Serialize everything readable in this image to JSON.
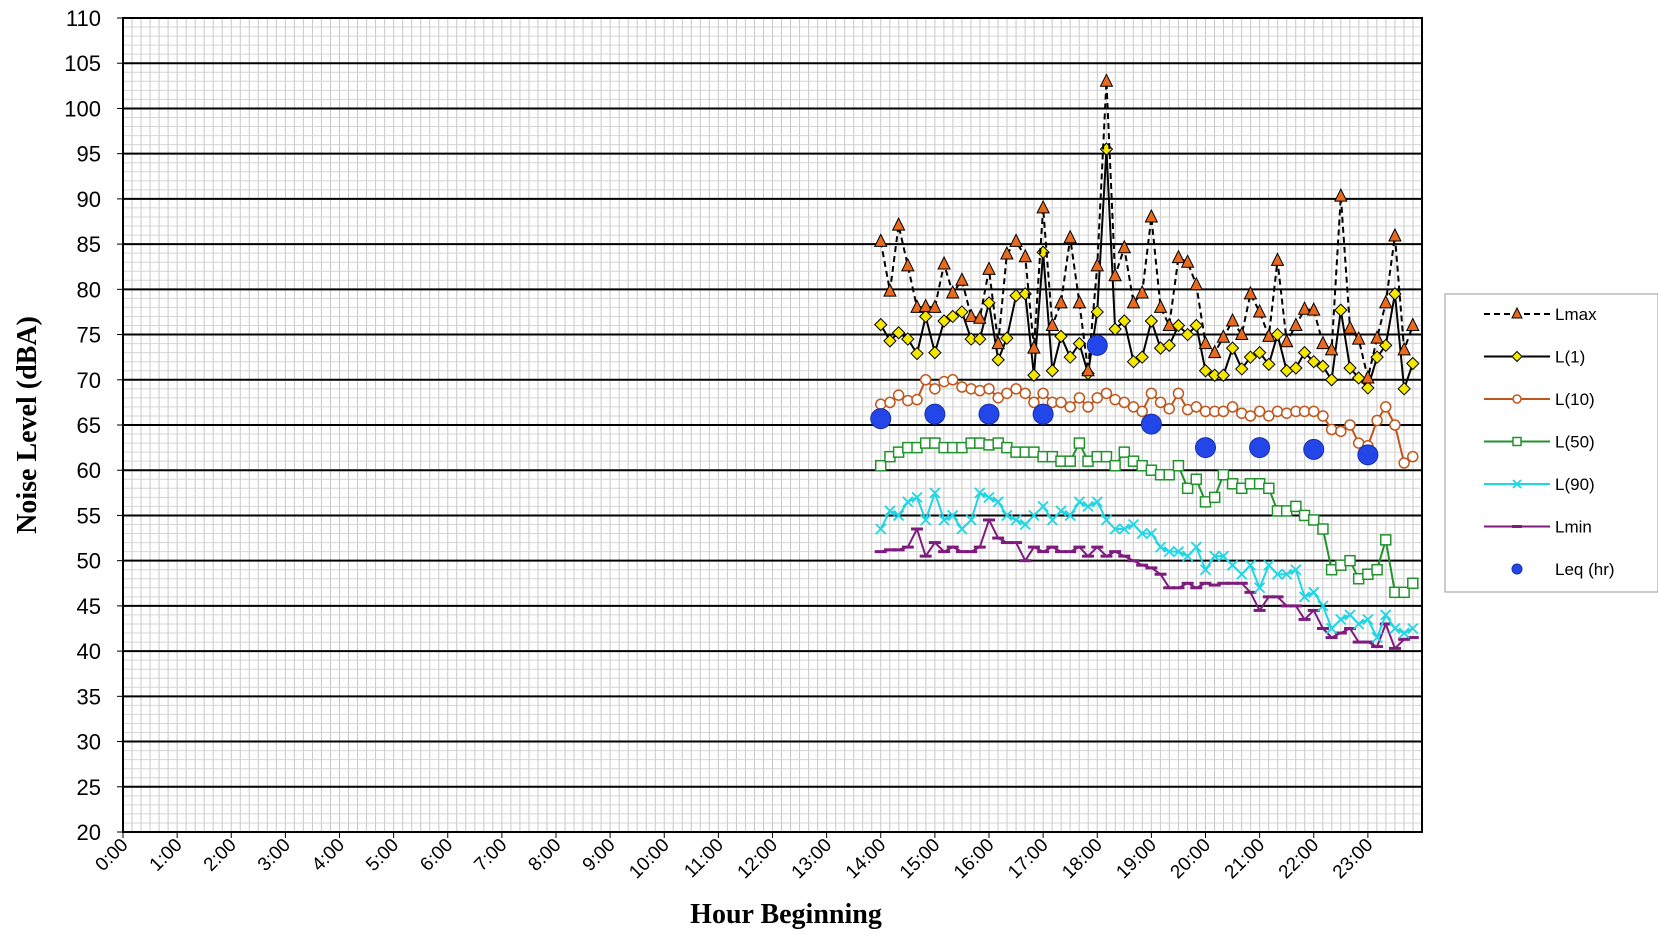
{
  "chart_data": {
    "type": "line",
    "title": "",
    "xlabel": "Hour Beginning",
    "ylabel": "Noise Level (dBA)",
    "ylim": [
      20,
      110
    ],
    "y_ticks": [
      20,
      25,
      30,
      35,
      40,
      45,
      50,
      55,
      60,
      65,
      70,
      75,
      80,
      85,
      90,
      95,
      100,
      105,
      110
    ],
    "xlim_hours": [
      0,
      24
    ],
    "x_tick_labels": [
      "0:00",
      "1:00",
      "2:00",
      "3:00",
      "4:00",
      "5:00",
      "6:00",
      "7:00",
      "8:00",
      "9:00",
      "10:00",
      "11:00",
      "12:00",
      "13:00",
      "14:00",
      "15:00",
      "16:00",
      "17:00",
      "18:00",
      "19:00",
      "20:00",
      "21:00",
      "22:00",
      "23:00"
    ],
    "grid": true,
    "legend_position": "right",
    "x_hours": [
      14.0,
      14.17,
      14.33,
      14.5,
      14.67,
      14.83,
      15.0,
      15.17,
      15.33,
      15.5,
      15.67,
      15.83,
      16.0,
      16.17,
      16.33,
      16.5,
      16.67,
      16.83,
      17.0,
      17.17,
      17.33,
      17.5,
      17.67,
      17.83,
      18.0,
      18.17,
      18.33,
      18.5,
      18.67,
      18.83,
      19.0,
      19.17,
      19.33,
      19.5,
      19.67,
      19.83,
      20.0,
      20.17,
      20.33,
      20.5,
      20.67,
      20.83,
      21.0,
      21.17,
      21.33,
      21.5,
      21.67,
      21.83,
      22.0,
      22.17,
      22.33,
      22.5,
      22.67,
      22.83,
      23.0,
      23.17,
      23.33,
      23.5,
      23.67,
      23.83
    ],
    "series": [
      {
        "name": "Lmax",
        "color": "#000000",
        "marker": "triangle",
        "marker_color": "#e86a1e",
        "dash": true,
        "values": [
          85.3,
          79.8,
          87.1,
          82.6,
          78.0,
          78.1,
          78.0,
          82.8,
          79.6,
          81.0,
          77.0,
          76.8,
          82.2,
          74.0,
          83.9,
          85.3,
          83.6,
          73.5,
          89.0,
          76.0,
          78.5,
          85.7,
          78.5,
          71.0,
          82.6,
          103.0,
          81.5,
          84.6,
          78.5,
          79.6,
          88.0,
          78.0,
          76.0,
          83.5,
          83.0,
          80.5,
          74.0,
          73.0,
          74.7,
          76.5,
          75.0,
          79.5,
          77.5,
          74.8,
          83.2,
          74.2,
          76.0,
          77.8,
          77.7,
          74.0,
          73.3,
          90.3,
          75.7,
          74.5,
          70.2,
          74.6,
          78.5,
          85.9,
          73.3,
          76.0
        ]
      },
      {
        "name": "L(1)",
        "color": "#000000",
        "marker": "diamond",
        "marker_color": "#f5e800",
        "dash": false,
        "values": [
          76.1,
          74.3,
          75.2,
          74.5,
          72.9,
          77.0,
          73.0,
          76.5,
          77.0,
          77.5,
          74.5,
          74.5,
          78.5,
          72.2,
          74.6,
          79.3,
          79.5,
          70.5,
          84.1,
          71.0,
          74.8,
          72.5,
          74.0,
          70.7,
          77.5,
          95.5,
          75.6,
          76.5,
          72.0,
          72.5,
          76.5,
          73.5,
          73.8,
          76.0,
          75.0,
          76.0,
          71.0,
          70.5,
          70.5,
          73.5,
          71.2,
          72.5,
          73.0,
          71.7,
          75.0,
          71.0,
          71.3,
          73.0,
          72.0,
          71.5,
          70.0,
          77.7,
          71.3,
          70.2,
          69.1,
          72.5,
          73.8,
          79.5,
          69.0,
          71.8
        ]
      },
      {
        "name": "L(10)",
        "color": "#c0561c",
        "marker": "circle-open",
        "marker_color": "#c0561c",
        "dash": false,
        "values": [
          67.3,
          67.5,
          68.3,
          67.7,
          67.8,
          70.0,
          69.0,
          69.8,
          70.0,
          69.2,
          69.0,
          68.8,
          69.0,
          68.0,
          68.5,
          69.0,
          68.5,
          67.5,
          68.5,
          67.5,
          67.5,
          67.0,
          68.0,
          67.0,
          68.0,
          68.5,
          67.8,
          67.5,
          67.0,
          66.5,
          68.5,
          67.5,
          66.8,
          68.5,
          66.7,
          67.0,
          66.5,
          66.5,
          66.5,
          67.0,
          66.3,
          66.0,
          66.5,
          66.0,
          66.5,
          66.3,
          66.5,
          66.5,
          66.5,
          66.0,
          64.5,
          64.3,
          65.0,
          63.0,
          62.7,
          65.5,
          67.0,
          65.0,
          60.8,
          61.5
        ]
      },
      {
        "name": "L(50)",
        "color": "#21922c",
        "marker": "square-open",
        "marker_color": "#21922c",
        "dash": false,
        "values": [
          60.5,
          61.5,
          62.0,
          62.5,
          62.5,
          63.0,
          63.0,
          62.5,
          62.5,
          62.5,
          63.0,
          63.0,
          62.8,
          63.0,
          62.5,
          62.0,
          62.0,
          62.0,
          61.5,
          61.5,
          61.0,
          61.0,
          63.0,
          61.0,
          61.5,
          61.5,
          60.5,
          62.0,
          61.0,
          60.5,
          60.0,
          59.5,
          59.5,
          60.5,
          58.0,
          59.0,
          56.5,
          57.0,
          59.5,
          58.5,
          58.0,
          58.5,
          58.5,
          58.0,
          55.5,
          55.5,
          56.0,
          55.0,
          54.5,
          53.5,
          49.0,
          49.5,
          50.0,
          48.0,
          48.5,
          49.0,
          52.3,
          46.5,
          46.5,
          47.5
        ]
      },
      {
        "name": "L(90)",
        "color": "#1ed6e4",
        "marker": "x",
        "marker_color": "#1ed6e4",
        "dash": false,
        "values": [
          53.5,
          55.5,
          55.0,
          56.5,
          57.0,
          54.5,
          57.5,
          54.5,
          55.0,
          53.5,
          54.5,
          57.5,
          57.0,
          56.5,
          55.0,
          54.5,
          54.0,
          55.0,
          56.0,
          54.5,
          55.5,
          55.0,
          56.5,
          56.0,
          56.5,
          54.5,
          53.5,
          53.5,
          54.0,
          53.0,
          53.0,
          51.5,
          51.0,
          51.0,
          50.5,
          51.5,
          49.0,
          50.5,
          50.5,
          49.5,
          48.5,
          49.5,
          47.0,
          49.5,
          48.5,
          48.5,
          49.0,
          46.0,
          46.5,
          45.0,
          42.5,
          43.5,
          44.0,
          43.0,
          43.5,
          41.5,
          44.0,
          42.5,
          42.0,
          42.5
        ]
      },
      {
        "name": "Lmin",
        "color": "#7e1c7e",
        "marker": "dash",
        "marker_color": "#7e1c7e",
        "dash": false,
        "values": [
          51.0,
          51.2,
          51.2,
          51.5,
          53.5,
          50.5,
          52.0,
          51.0,
          51.5,
          51.0,
          51.0,
          51.5,
          54.5,
          52.5,
          52.0,
          52.0,
          50.0,
          51.5,
          51.0,
          51.5,
          51.0,
          51.0,
          51.5,
          50.5,
          51.5,
          50.5,
          51.0,
          50.5,
          50.0,
          49.5,
          49.2,
          48.5,
          47.0,
          47.0,
          47.5,
          47.0,
          47.5,
          47.3,
          47.5,
          47.5,
          47.5,
          46.5,
          44.5,
          46.0,
          46.0,
          45.0,
          45.0,
          43.5,
          44.5,
          42.5,
          41.5,
          42.0,
          42.5,
          41.0,
          41.0,
          40.5,
          43.0,
          40.3,
          41.3,
          41.5
        ]
      },
      {
        "name": "Leq (hr)",
        "color": "#2246e8",
        "marker": "dot",
        "marker_color": "#2246e8",
        "points_only": true,
        "x_hours": [
          14,
          15,
          16,
          17,
          18,
          19,
          20,
          21,
          22,
          23
        ],
        "values": [
          65.7,
          66.2,
          66.2,
          66.2,
          73.8,
          65.1,
          62.5,
          62.5,
          62.3,
          61.7
        ]
      }
    ]
  }
}
